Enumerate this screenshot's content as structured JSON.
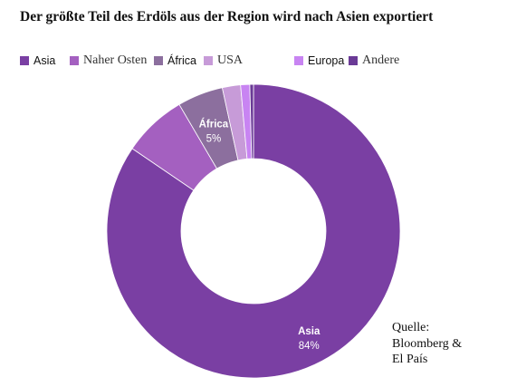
{
  "chart_data": {
    "type": "pie",
    "donut": true,
    "title": "Der größte Teil des Erdöls aus der Region wird nach Asien exportiert",
    "slices": [
      {
        "label": "Asia",
        "value": 84,
        "color": "#7a3fa3",
        "value_label": "84%"
      },
      {
        "label": "Naher Osten",
        "value": 7,
        "color": "#a460c0",
        "value_label": ""
      },
      {
        "label": "África",
        "value": 5,
        "color": "#8c6f9e",
        "value_label": "5%"
      },
      {
        "label": "USA",
        "value": 2,
        "color": "#c79bd8",
        "value_label": ""
      },
      {
        "label": "Europa",
        "value": 1,
        "color": "#c884f2",
        "value_label": ""
      },
      {
        "label": "Andere",
        "value": 0.4,
        "color": "#6a3a96",
        "value_label": ""
      }
    ],
    "legend_position": "top-left",
    "source": [
      "Quelle:",
      "Bloomberg &",
      "El País"
    ]
  }
}
